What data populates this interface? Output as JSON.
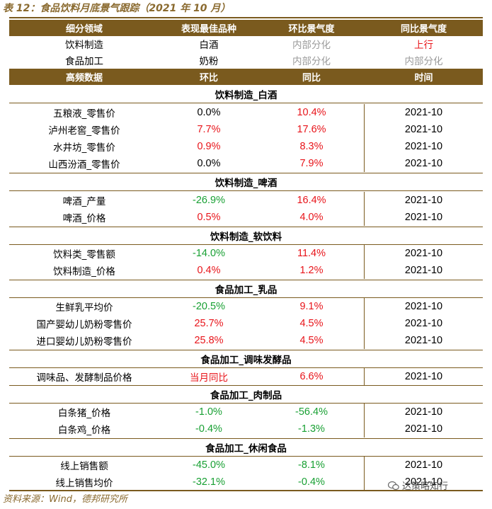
{
  "title": "表 12：食品饮料月底景气跟踪（2021 年 10 月）",
  "summary_header": [
    "细分领域",
    "表现最佳品种",
    "环比景气度",
    "同比景气度"
  ],
  "summary_rows": [
    {
      "area": "饮料制造",
      "best": "白酒",
      "mom": "内部分化",
      "yoy": "上行"
    },
    {
      "area": "食品加工",
      "best": "奶粉",
      "mom": "内部分化",
      "yoy": "内部分化"
    }
  ],
  "data_header": [
    "高频数据",
    "环比",
    "同比",
    "时间"
  ],
  "sections": [
    {
      "title": "饮料制造_白酒",
      "rows": [
        {
          "name": "五粮液_零售价",
          "mom": "0.0%",
          "yoy": "10.4%",
          "time": "2021-10"
        },
        {
          "name": "泸州老窖_零售价",
          "mom": "7.7%",
          "yoy": "17.6%",
          "time": "2021-10"
        },
        {
          "name": "水井坊_零售价",
          "mom": "0.9%",
          "yoy": "8.3%",
          "time": "2021-10"
        },
        {
          "name": "山西汾酒_零售价",
          "mom": "0.0%",
          "yoy": "7.9%",
          "time": "2021-10"
        }
      ]
    },
    {
      "title": "饮料制造_啤酒",
      "rows": [
        {
          "name": "啤酒_产量",
          "mom": "-26.9%",
          "yoy": "16.4%",
          "time": "2021-10"
        },
        {
          "name": "啤酒_价格",
          "mom": "0.5%",
          "yoy": "4.0%",
          "time": "2021-10"
        }
      ]
    },
    {
      "title": "饮料制造_软饮料",
      "rows": [
        {
          "name": "饮料类_零售额",
          "mom": "-14.0%",
          "yoy": "11.4%",
          "time": "2021-10"
        },
        {
          "name": "饮料制造_价格",
          "mom": "0.4%",
          "yoy": "1.2%",
          "time": "2021-10"
        }
      ]
    },
    {
      "title": "食品加工_乳品",
      "rows": [
        {
          "name": "生鲜乳平均价",
          "mom": "-20.5%",
          "yoy": "9.1%",
          "time": "2021-10"
        },
        {
          "name": "国产婴幼儿奶粉零售价",
          "mom": "25.7%",
          "yoy": "4.5%",
          "time": "2021-10"
        },
        {
          "name": "进口婴幼儿奶粉零售价",
          "mom": "25.8%",
          "yoy": "4.5%",
          "time": "2021-10"
        }
      ]
    },
    {
      "title": "食品加工_调味发酵品",
      "rows": [
        {
          "name": "调味品、发酵制品价格",
          "mom": "当月同比",
          "yoy": "6.6%",
          "time": "2021-10"
        }
      ]
    },
    {
      "title": "食品加工_肉制品",
      "rows": [
        {
          "name": "白条猪_价格",
          "mom": "-1.0%",
          "yoy": "-56.4%",
          "time": "2021-10"
        },
        {
          "name": "白条鸡_价格",
          "mom": "-0.4%",
          "yoy": "-1.3%",
          "time": "2021-10"
        }
      ]
    },
    {
      "title": "食品加工_休闲食品",
      "rows": [
        {
          "name": "线上销售额",
          "mom": "-45.0%",
          "yoy": "-8.1%",
          "time": "2021-10"
        },
        {
          "name": "线上销售均价",
          "mom": "-32.1%",
          "yoy": "-0.4%",
          "time": "2021-10"
        }
      ]
    }
  ],
  "source": "资料来源：Wind，德邦研究所",
  "watermark": "达策略知行",
  "colors": {
    "header_bg": "#7a5a1e",
    "positive": "#e8141a",
    "negative": "#18a033",
    "neutral_gray": "#9a9a9a"
  }
}
